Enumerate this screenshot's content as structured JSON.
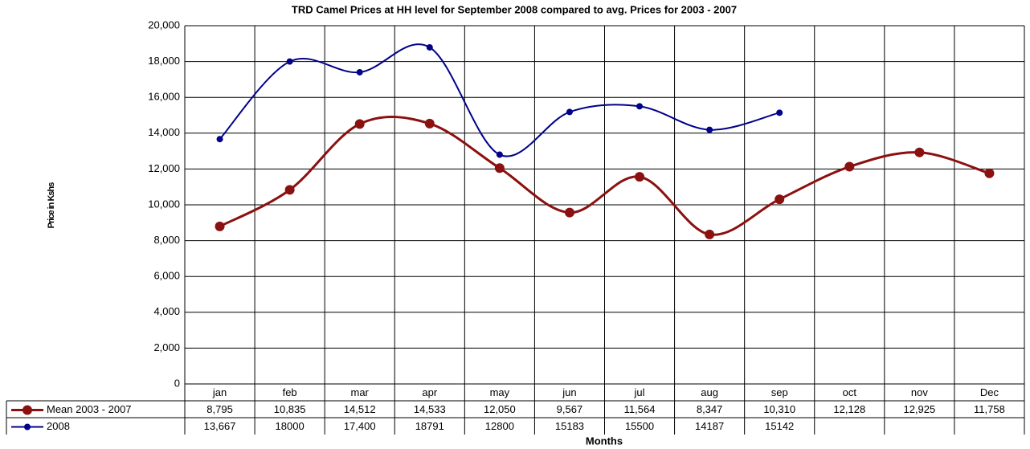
{
  "chart_data": {
    "type": "line",
    "title": "TRD Camel Prices at HH level for September 2008 compared to avg. Prices for 2003 - 2007",
    "y_label": "Price in Kshs",
    "x_label": "Months",
    "categories": [
      "jan",
      "feb",
      "mar",
      "apr",
      "may",
      "jun",
      "jul",
      "aug",
      "sep",
      "oct",
      "nov",
      "Dec"
    ],
    "series": [
      {
        "name": "Mean 2003 - 2007",
        "color": "#8b1010",
        "values": [
          8795,
          10835,
          14512,
          14533,
          12050,
          9567,
          11564,
          8347,
          10310,
          12128,
          12925,
          11758
        ],
        "value_labels": [
          "8,795",
          "10,835",
          "14,512",
          "14,533",
          "12,050",
          "9,567",
          "11,564",
          "8,347",
          "10,310",
          "12,128",
          "12,925",
          "11,758"
        ]
      },
      {
        "name": "2008",
        "color": "#00008b",
        "values": [
          13667,
          18000,
          17400,
          18791,
          12800,
          15183,
          15500,
          14187,
          15142,
          null,
          null,
          null
        ],
        "value_labels": [
          "13,667",
          "18000",
          "17,400",
          "18791",
          "12800",
          "15183",
          "15500",
          "14187",
          "15142",
          null,
          null,
          null
        ]
      }
    ],
    "ylim": [
      0,
      20000
    ],
    "yticks": [
      0,
      {
        "value": 2000,
        "label": "2,000"
      },
      {
        "value": 4000,
        "label": "4,000"
      },
      {
        "value": 6000,
        "label": "6,000"
      },
      {
        "value": 8000,
        "label": "8,000"
      },
      {
        "value": 10000,
        "label": "10,000"
      },
      {
        "value": 12000,
        "label": "12,000"
      },
      {
        "value": 14000,
        "label": "14,000"
      },
      {
        "value": 16000,
        "label": "16,000"
      },
      {
        "value": 18000,
        "label": "18,000"
      },
      {
        "value": 20000,
        "label": "20,000"
      }
    ],
    "grid": true,
    "smooth": true
  }
}
